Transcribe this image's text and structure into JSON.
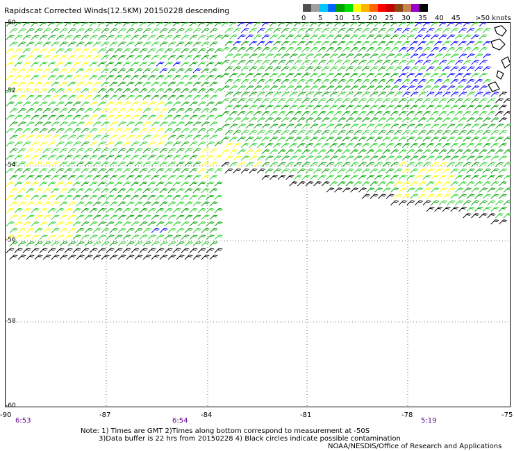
{
  "header": {
    "title": "Rapidscat Corrected Winds(12.5KM) 20150228 descending"
  },
  "colorbar": {
    "colors": [
      "#505050",
      "#a0a0a0",
      "#00c8ff",
      "#0064ff",
      "#00a000",
      "#00e000",
      "#ffff00",
      "#ffb400",
      "#ff6400",
      "#ff0000",
      "#c80000",
      "#8b4513",
      "#c88250",
      "#9600c8",
      "#000000"
    ],
    "labels": [
      "0",
      "5",
      "10",
      "15",
      "20",
      "25",
      "30",
      "35",
      "40",
      "45",
      ">50 knots"
    ]
  },
  "map": {
    "lon_labels": [
      "-90",
      "-87",
      "-84",
      "-81",
      "-78",
      "-75"
    ],
    "lat_labels": [
      "-50",
      "-52",
      "-54",
      "-56",
      "-58",
      "-60"
    ],
    "times": [
      "6:53",
      "6:54",
      "5:19"
    ],
    "barb_colors": {
      "green": "#00a000",
      "light_green": "#22d022",
      "yellow": "#ffff00",
      "blue": "#0000ff",
      "black": "#000000"
    }
  },
  "notes": {
    "line1": "Note: 1) Times are GMT 2)Times along bottom correspond to measurement at -50S",
    "line2": "3)Data buffer is 22 hrs from 20150228 4) Black circles indicate possible contamination",
    "line3": "NOAA/NESDIS/Office of Research and Applications"
  }
}
